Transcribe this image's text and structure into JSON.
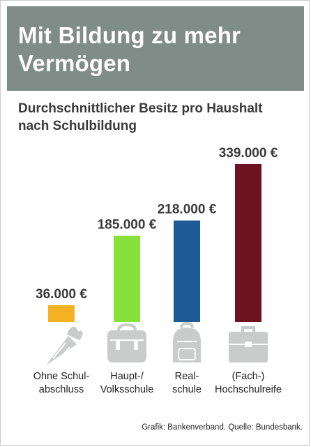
{
  "header": {
    "title": "Mit Bildung zu mehr Vermögen"
  },
  "subtitle": "Durchschnittlicher Besitz pro Haushalt nach Schulbildung",
  "source": "Grafik: Bankenverband. Quelle: Bundesbank.",
  "colors": {
    "header_bg": "#7f8c88",
    "icon_gray": "#c9cccb"
  },
  "chart_data": {
    "type": "bar",
    "categories": [
      "Ohne Schul-\nabschluss",
      "Haupt-/\nVolksschule",
      "Real-\nschule",
      "(Fach-)\nHochschulreife"
    ],
    "values": [
      36000,
      185000,
      218000,
      339000
    ],
    "value_labels": [
      "36.000 €",
      "185.000 €",
      "218.000 €",
      "339.000 €"
    ],
    "bar_colors": [
      "#f4b223",
      "#86e23a",
      "#1e5b96",
      "#6c1220"
    ],
    "icons": [
      "school-cone-icon",
      "satchel-icon",
      "backpack-icon",
      "briefcase-icon"
    ],
    "ylim": [
      0,
      339000
    ],
    "grid": false,
    "legend": "none"
  }
}
